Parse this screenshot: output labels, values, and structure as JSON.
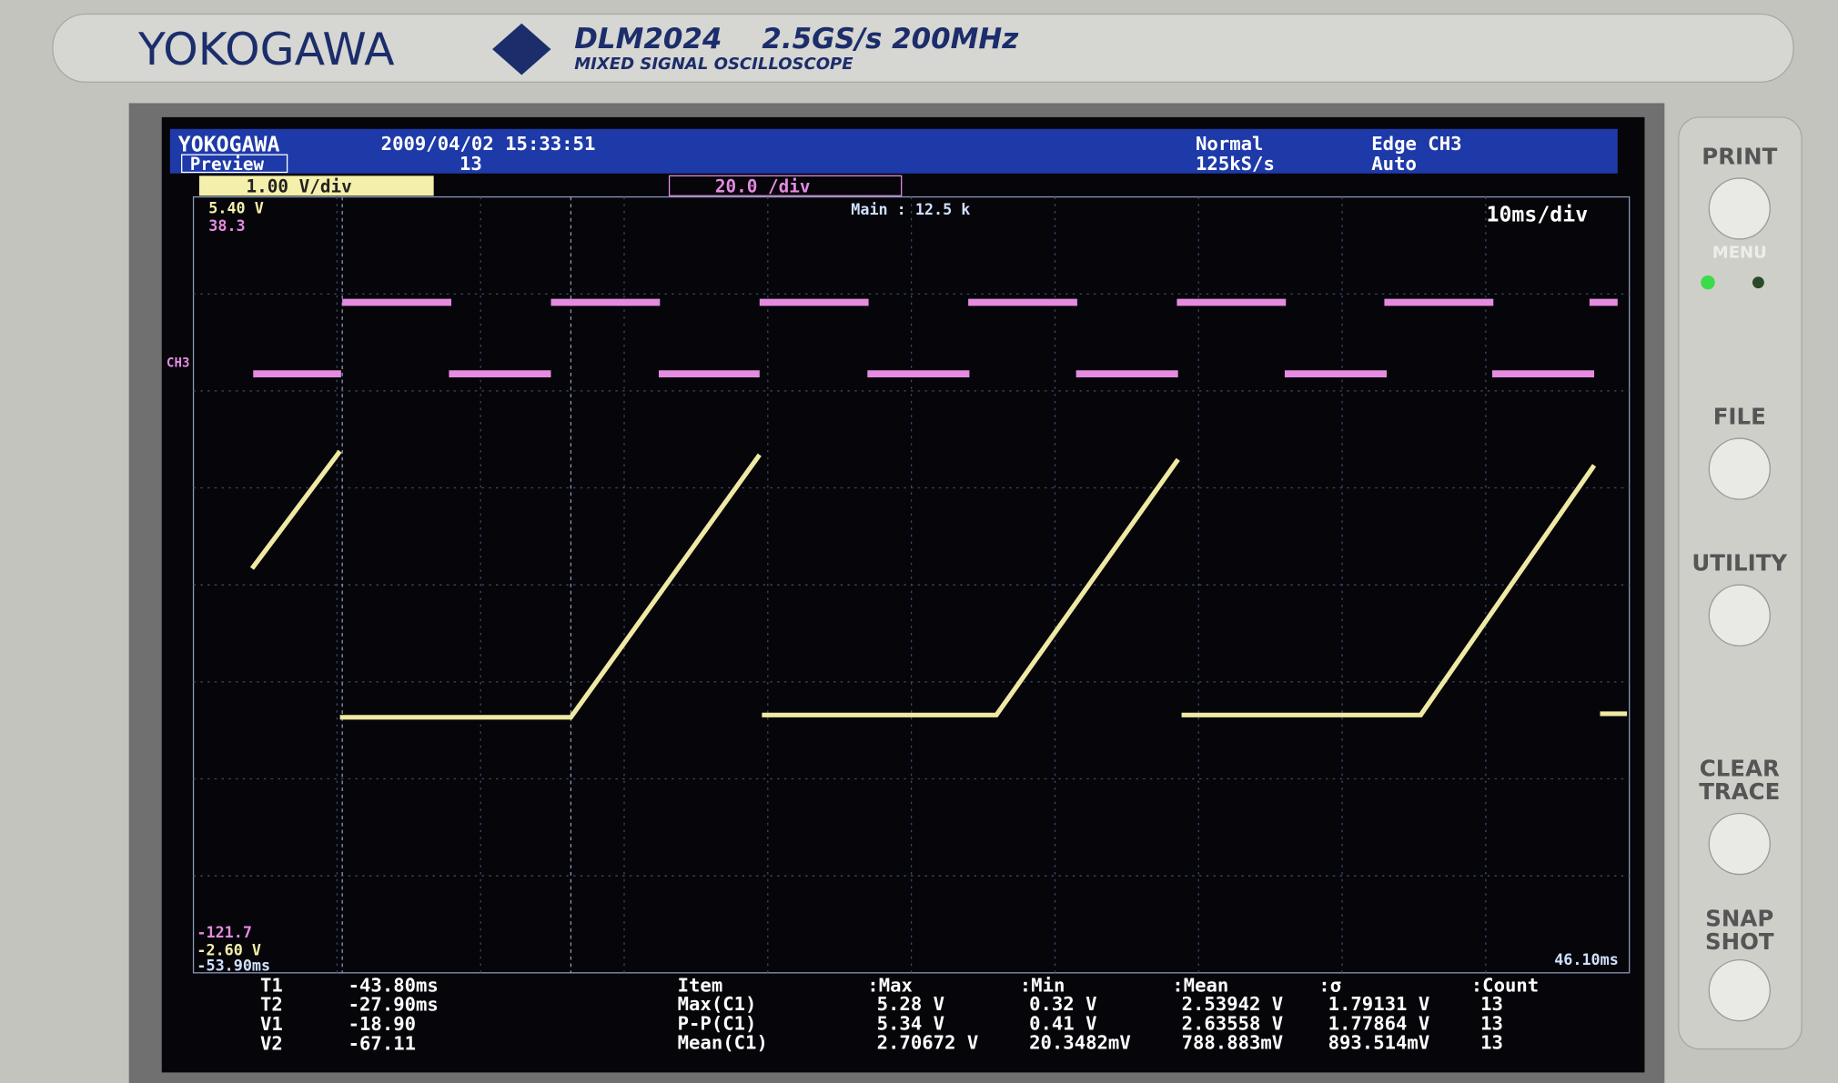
{
  "bezel": {
    "brand": "YOKOGAWA",
    "model": "DLM2024",
    "spec": "2.5GS/s 200MHz",
    "subtitle": "MIXED SIGNAL OSCILLOSCOPE"
  },
  "screen_header": {
    "brand": "YOKOGAWA",
    "mode": "Preview",
    "datetime": "2009/04/02  15:33:51",
    "count": "13",
    "trigger_mode": "Normal",
    "sample_rate": "125kS/s",
    "trigger": "Edge CH3",
    "trigger_auto": "Auto"
  },
  "channels": {
    "ch1": "1.00 V/div",
    "ch3": "20.0 /div"
  },
  "grid_labels": {
    "ch1_top": "5.40 V",
    "ch3_top": "38.3",
    "main": "Main : 12.5 k",
    "timebase": "10ms/div",
    "ch3_marker": "CH3",
    "ch3_bottom": "-121.7",
    "ch1_bottom": "-2.60 V",
    "left_time": "-53.90ms",
    "right_time": "46.10ms"
  },
  "cursors": [
    [
      "T1",
      "-43.80ms"
    ],
    [
      "T2",
      "-27.90ms"
    ],
    [
      "V1",
      "-18.90"
    ],
    [
      "V2",
      "-67.11"
    ]
  ],
  "measurements": {
    "header": [
      "Item",
      ":Max",
      ":Min",
      ":Mean",
      ":σ",
      ":Count"
    ],
    "rows": [
      [
        "Max(C1)",
        "5.28 V",
        "0.32 V",
        "2.53942 V",
        "1.79131 V",
        "13"
      ],
      [
        "P-P(C1)",
        "5.34 V",
        "0.41 V",
        "2.63558 V",
        "1.77864 V",
        "13"
      ],
      [
        "Mean(C1)",
        "2.70672 V",
        "20.3482mV",
        "788.883mV",
        "893.514mV",
        "13"
      ]
    ]
  },
  "buttons": [
    "PRINT",
    "MENU",
    "FILE",
    "UTILITY",
    "CLEAR TRACE",
    "SNAP SHOT"
  ]
}
